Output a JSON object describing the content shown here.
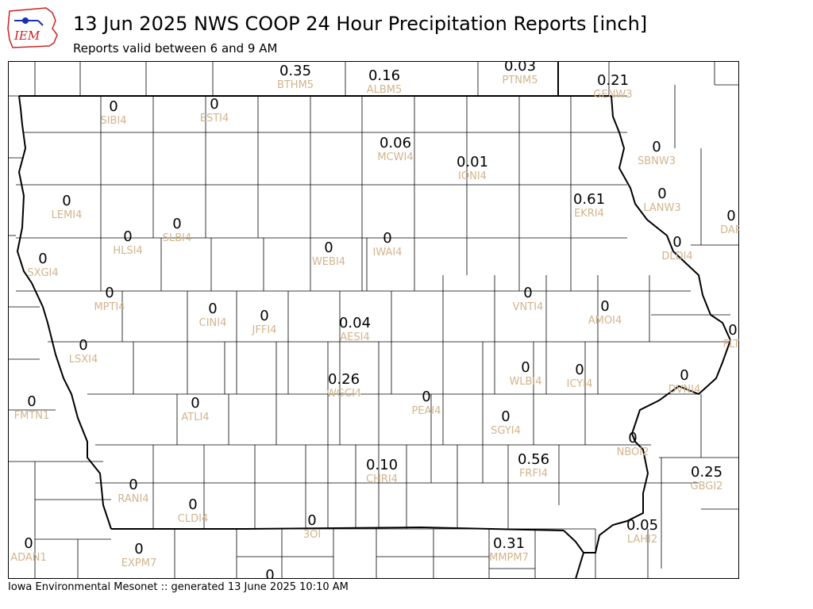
{
  "header": {
    "logo_text": "IEM",
    "title": "13 Jun 2025 NWS COOP 24 Hour Precipitation Reports [inch]",
    "subtitle": "Reports valid between 6 and 9 AM"
  },
  "footer": {
    "text": "Iowa Environmental Mesonet :: generated 13 June 2025 10:10 AM"
  },
  "colors": {
    "value_text": "#000000",
    "station_text": "#d2b48c",
    "county_lines": "#000000",
    "logo_red": "#cc2222",
    "logo_blue": "#1a2fb0"
  },
  "stations": [
    {
      "id": "BTHM5",
      "value": "0.35"
    },
    {
      "id": "ALBM5",
      "value": "0.16"
    },
    {
      "id": "PTNM5",
      "value": "0.03"
    },
    {
      "id": "GENW3",
      "value": "0.21"
    },
    {
      "id": "SIBI4",
      "value": "0"
    },
    {
      "id": "ESTI4",
      "value": "0"
    },
    {
      "id": "MCWI4",
      "value": "0.06"
    },
    {
      "id": "IONI4",
      "value": "0.01"
    },
    {
      "id": "SBNW3",
      "value": "0"
    },
    {
      "id": "LEMI4",
      "value": "0"
    },
    {
      "id": "EKRI4",
      "value": "0.61"
    },
    {
      "id": "LANW3",
      "value": "0"
    },
    {
      "id": "DAR",
      "value": "0"
    },
    {
      "id": "HLSI4",
      "value": "0"
    },
    {
      "id": "SLBI4",
      "value": "0"
    },
    {
      "id": "SXGI4",
      "value": "0"
    },
    {
      "id": "WEBI4",
      "value": "0"
    },
    {
      "id": "IWAI4",
      "value": "0"
    },
    {
      "id": "DLDI4",
      "value": "0"
    },
    {
      "id": "MPTI4",
      "value": "0"
    },
    {
      "id": "CINI4",
      "value": "0"
    },
    {
      "id": "JFFI4",
      "value": "0"
    },
    {
      "id": "VNTI4",
      "value": "0"
    },
    {
      "id": "AMOI4",
      "value": "0"
    },
    {
      "id": "AESI4",
      "value": "0.04"
    },
    {
      "id": "FLTI",
      "value": "0"
    },
    {
      "id": "LSXI4",
      "value": "0"
    },
    {
      "id": "WLBI4",
      "value": "0"
    },
    {
      "id": "ICYI4",
      "value": "0"
    },
    {
      "id": "DVNI4",
      "value": "0"
    },
    {
      "id": "WGCI4",
      "value": "0.26"
    },
    {
      "id": "FMTN1",
      "value": "0"
    },
    {
      "id": "ATLI4",
      "value": "0"
    },
    {
      "id": "PEAI4",
      "value": "0"
    },
    {
      "id": "SGYI4",
      "value": "0"
    },
    {
      "id": "NBOI2",
      "value": "0"
    },
    {
      "id": "CHRI4",
      "value": "0.10"
    },
    {
      "id": "FRFI4",
      "value": "0.56"
    },
    {
      "id": "RANI4",
      "value": "0"
    },
    {
      "id": "GBGI2",
      "value": "0.25"
    },
    {
      "id": "CLDI4",
      "value": "0"
    },
    {
      "id": "3OI",
      "value": "0"
    },
    {
      "id": "LAHI2",
      "value": "0.05"
    },
    {
      "id": "ADAN1",
      "value": "0"
    },
    {
      "id": "EXPM7",
      "value": "0"
    },
    {
      "id": "MMPM7",
      "value": "0.31"
    },
    {
      "id": "",
      "value": "0"
    }
  ]
}
